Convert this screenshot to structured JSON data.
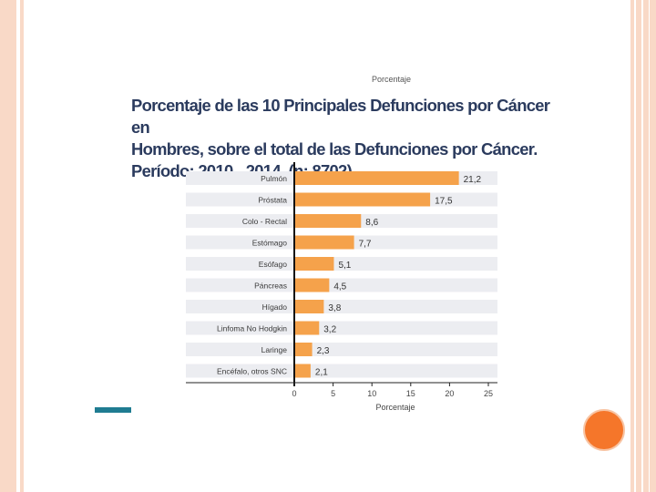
{
  "chart_data": {
    "type": "bar",
    "orientation": "horizontal",
    "title": "Porcentaje de las 10 Principales Defunciones por Cáncer en Hombres, sobre el total de las Defunciones por Cáncer. Período: 2010 - 2014. (n: 8702)",
    "title_lines": [
      "Porcentaje de las 10 Principales Defunciones por Cáncer en",
      "Hombres, sobre el total de las Defunciones por Cáncer.",
      "Período: 2010 - 2014. (n: 8702)"
    ],
    "categories": [
      "Pulmón",
      "Próstata",
      "Colo - Rectal",
      "Estómago",
      "Esófago",
      "Páncreas",
      "Hígado",
      "Linfoma No Hodgkin",
      "Laringe",
      "Encéfalo, otros SNC"
    ],
    "values": [
      21.2,
      17.5,
      8.6,
      7.7,
      5.1,
      4.5,
      3.8,
      3.2,
      2.3,
      2.1
    ],
    "value_labels": [
      "21,2",
      "17,5",
      "8,6",
      "7,7",
      "5,1",
      "4,5",
      "3,8",
      "3,2",
      "2,3",
      "2,1"
    ],
    "xlabel": "Porcentaje",
    "xlim": [
      0,
      25
    ],
    "xticks": [
      0,
      5,
      10,
      15,
      20,
      25
    ],
    "grid": false,
    "bar_color": "#f5a24b",
    "row_band_color": "#ecedf1"
  },
  "cropped_top": {
    "axis_label": "Porcentaje"
  },
  "colors": {
    "title": "#2b3b5e",
    "accent": "#1f7c91",
    "circle": "#f5762a",
    "frame": "#f9d9c7"
  }
}
